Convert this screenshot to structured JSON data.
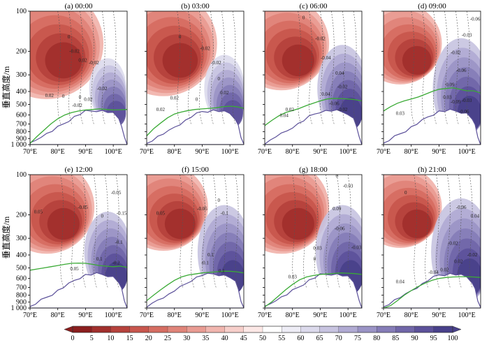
{
  "chart_data": {
    "type": "heatmap",
    "figure": {
      "ylabel": "垂直高度/m",
      "x_ticks": [
        "70°E",
        "80°E",
        "90°E",
        "100°E"
      ],
      "x_tick_values": [
        70,
        80,
        90,
        100
      ],
      "xlim": [
        70,
        105
      ],
      "y_ticks": [
        "100",
        "200",
        "300",
        "400",
        "500",
        "600",
        "700",
        "800",
        "900",
        "1 000"
      ],
      "y_tick_values": [
        100,
        200,
        300,
        400,
        500,
        600,
        700,
        800,
        900,
        1000
      ],
      "ylim": [
        1000,
        100
      ],
      "y_scale": "log",
      "colorbar": {
        "ticks": [
          "0",
          "5",
          "10",
          "15",
          "20",
          "25",
          "30",
          "35",
          "40",
          "45",
          "50",
          "55",
          "60",
          "65",
          "70",
          "75",
          "80",
          "85",
          "90",
          "95",
          "100"
        ],
        "tick_values": [
          0,
          5,
          10,
          15,
          20,
          25,
          30,
          35,
          40,
          45,
          50,
          55,
          60,
          65,
          70,
          75,
          80,
          85,
          90,
          95,
          100
        ],
        "colors": [
          "#8b1e1e",
          "#a12f2c",
          "#b6423c",
          "#c8564d",
          "#d66d62",
          "#e08479",
          "#e99b92",
          "#f1b5ae",
          "#f7cfca",
          "#fce8e6",
          "#ffffff",
          "#eeedf6",
          "#dcdaec",
          "#c7c3e0",
          "#b0aad3",
          "#9a93c5",
          "#857cb7",
          "#7066a8",
          "#5c519a",
          "#48408a"
        ],
        "extend": "both"
      },
      "terrain_color": "#ffffff",
      "green_line_color": "#3aaa35"
    },
    "panels": [
      {
        "title": "(a) 00:00",
        "red_extent": 0.85,
        "blue_level": 0.35,
        "terrain_offset": 0,
        "green": [
          980,
          870,
          780,
          700,
          640,
          600,
          575,
          560,
          550,
          545,
          540,
          545,
          550,
          548,
          545
        ],
        "contour_labels": [
          {
            "text": "0",
            "lon": 84,
            "p": 160
          },
          {
            "text": "-0.02",
            "lon": 86,
            "p": 205
          },
          {
            "text": "0.02",
            "lon": 89,
            "p": 240
          },
          {
            "text": "-0.02",
            "lon": 93,
            "p": 250
          },
          {
            "text": "-0.02",
            "lon": 96,
            "p": 390
          },
          {
            "text": "0.02",
            "lon": 77,
            "p": 440
          },
          {
            "text": "0",
            "lon": 82,
            "p": 445
          },
          {
            "text": "-0.02",
            "lon": 87,
            "p": 520
          },
          {
            "text": "0",
            "lon": 88,
            "p": 455
          },
          {
            "text": "0.02",
            "lon": 91,
            "p": 470
          }
        ]
      },
      {
        "title": "(b) 03:00",
        "red_extent": 0.8,
        "blue_level": 0.4,
        "terrain_offset": 2,
        "green": [
          860,
          760,
          690,
          630,
          590,
          570,
          555,
          545,
          540,
          535,
          530,
          520,
          515,
          520,
          535
        ],
        "contour_labels": [
          {
            "text": "-0.02",
            "lon": 91,
            "p": 195
          },
          {
            "text": "0",
            "lon": 82,
            "p": 160
          },
          {
            "text": "-0.02",
            "lon": 95,
            "p": 250
          },
          {
            "text": "0.02",
            "lon": 80,
            "p": 460
          },
          {
            "text": "0.02",
            "lon": 75,
            "p": 560
          },
          {
            "text": "0",
            "lon": 88,
            "p": 470
          },
          {
            "text": "0.02",
            "lon": 98,
            "p": 420
          },
          {
            "text": "0",
            "lon": 96,
            "p": 330
          }
        ]
      },
      {
        "title": "(c) 06:00",
        "red_extent": 0.7,
        "blue_level": 0.55,
        "terrain_offset": 4,
        "green": [
          720,
          660,
          610,
          575,
          555,
          535,
          510,
          490,
          470,
          455,
          450,
          452,
          455,
          460,
          470
        ],
        "contour_labels": [
          {
            "text": "-0.02",
            "lon": 90,
            "p": 165
          },
          {
            "text": "0",
            "lon": 84,
            "p": 115
          },
          {
            "text": "-0.04",
            "lon": 92,
            "p": 230
          },
          {
            "text": "0.04",
            "lon": 97,
            "p": 300
          },
          {
            "text": "-0.02",
            "lon": 98,
            "p": 380
          },
          {
            "text": "0.04",
            "lon": 92,
            "p": 430
          },
          {
            "text": "-0.06",
            "lon": 95,
            "p": 505
          },
          {
            "text": "-0.02",
            "lon": 98,
            "p": 560
          },
          {
            "text": "0.02",
            "lon": 79,
            "p": 560
          },
          {
            "text": "0.04",
            "lon": 77,
            "p": 620
          }
        ]
      },
      {
        "title": "(d) 09:00",
        "red_extent": 0.6,
        "blue_level": 0.65,
        "terrain_offset": 6,
        "green": [
          560,
          520,
          490,
          470,
          455,
          440,
          420,
          400,
          385,
          380,
          375,
          385,
          395,
          395,
          410
        ],
        "contour_labels": [
          {
            "text": "-0.06",
            "lon": 103,
            "p": 118
          },
          {
            "text": "-0.03",
            "lon": 100,
            "p": 155
          },
          {
            "text": "-0.02",
            "lon": 96,
            "p": 210
          },
          {
            "text": "-0.06",
            "lon": 98,
            "p": 285
          },
          {
            "text": "0.09",
            "lon": 94,
            "p": 365
          },
          {
            "text": "0.03",
            "lon": 93,
            "p": 455
          },
          {
            "text": "-0.03",
            "lon": 100,
            "p": 480
          },
          {
            "text": "-0.09",
            "lon": 96,
            "p": 490
          },
          {
            "text": "0.03",
            "lon": 76,
            "p": 600
          },
          {
            "text": "-0.06",
            "lon": 99,
            "p": 580
          }
        ]
      },
      {
        "title": "(e) 12:00",
        "red_extent": 0.7,
        "blue_level": 0.5,
        "terrain_offset": 1,
        "green": [
          520,
          510,
          500,
          490,
          480,
          470,
          462,
          460,
          462,
          470,
          480,
          485,
          490,
          485,
          495
        ],
        "contour_labels": [
          {
            "text": "0.05",
            "lon": 73,
            "p": 195
          },
          {
            "text": "-0.05",
            "lon": 89,
            "p": 180
          },
          {
            "text": "-0.05",
            "lon": 101,
            "p": 140
          },
          {
            "text": "-0.15",
            "lon": 103,
            "p": 200
          },
          {
            "text": "0",
            "lon": 96,
            "p": 210
          },
          {
            "text": "-0.1",
            "lon": 102,
            "p": 330
          },
          {
            "text": "0.1",
            "lon": 95,
            "p": 440
          },
          {
            "text": "-0.2",
            "lon": 101,
            "p": 470
          },
          {
            "text": "0.05",
            "lon": 86,
            "p": 520
          }
        ]
      },
      {
        "title": "(f) 15:00",
        "red_extent": 0.65,
        "blue_level": 0.6,
        "terrain_offset": 3,
        "green": [
          880,
          800,
          730,
          670,
          620,
          585,
          565,
          555,
          545,
          540,
          535,
          530,
          530,
          535,
          545
        ],
        "contour_labels": [
          {
            "text": "0.05",
            "lon": 75,
            "p": 200
          },
          {
            "text": "-0.05",
            "lon": 90,
            "p": 185
          },
          {
            "text": "-0.1",
            "lon": 98,
            "p": 200
          },
          {
            "text": "0",
            "lon": 96,
            "p": 160
          },
          {
            "text": "0.1",
            "lon": 93,
            "p": 410
          },
          {
            "text": "-0.1",
            "lon": 91,
            "p": 470
          },
          {
            "text": "0.1",
            "lon": 97,
            "p": 540
          }
        ]
      },
      {
        "title": "(g) 18:00",
        "red_extent": 0.7,
        "blue_level": 0.6,
        "terrain_offset": 5,
        "green": [
          980,
          900,
          810,
          730,
          665,
          615,
          585,
          570,
          560,
          555,
          550,
          545,
          548,
          552,
          560
        ],
        "contour_labels": [
          {
            "text": "-0.03",
            "lon": 100,
            "p": 125
          },
          {
            "text": "0",
            "lon": 96,
            "p": 105
          },
          {
            "text": "0.09",
            "lon": 96,
            "p": 185
          },
          {
            "text": "-0.06",
            "lon": 97,
            "p": 260
          },
          {
            "text": "0.03",
            "lon": 89,
            "p": 365
          },
          {
            "text": "-0.03",
            "lon": 103,
            "p": 360
          },
          {
            "text": "0.03",
            "lon": 80,
            "p": 600
          },
          {
            "text": "0",
            "lon": 88,
            "p": 440
          }
        ]
      },
      {
        "title": "(h) 21:00",
        "red_extent": 0.6,
        "blue_level": 0.7,
        "terrain_offset": 7,
        "green": [
          1000,
          960,
          880,
          800,
          740,
          690,
          650,
          620,
          600,
          590,
          585,
          582,
          582,
          585,
          590
        ],
        "contour_labels": [
          {
            "text": "0",
            "lon": 78,
            "p": 140
          },
          {
            "text": "-0.06",
            "lon": 98,
            "p": 180
          },
          {
            "text": "0.04",
            "lon": 103,
            "p": 210
          },
          {
            "text": "-0.02",
            "lon": 95,
            "p": 335
          },
          {
            "text": "0.02",
            "lon": 97,
            "p": 460
          },
          {
            "text": "-0.02",
            "lon": 102,
            "p": 410
          },
          {
            "text": "0.02",
            "lon": 92,
            "p": 530
          },
          {
            "text": "-0.04",
            "lon": 88,
            "p": 555
          },
          {
            "text": "0.04",
            "lon": 76,
            "p": 650
          }
        ]
      }
    ]
  }
}
